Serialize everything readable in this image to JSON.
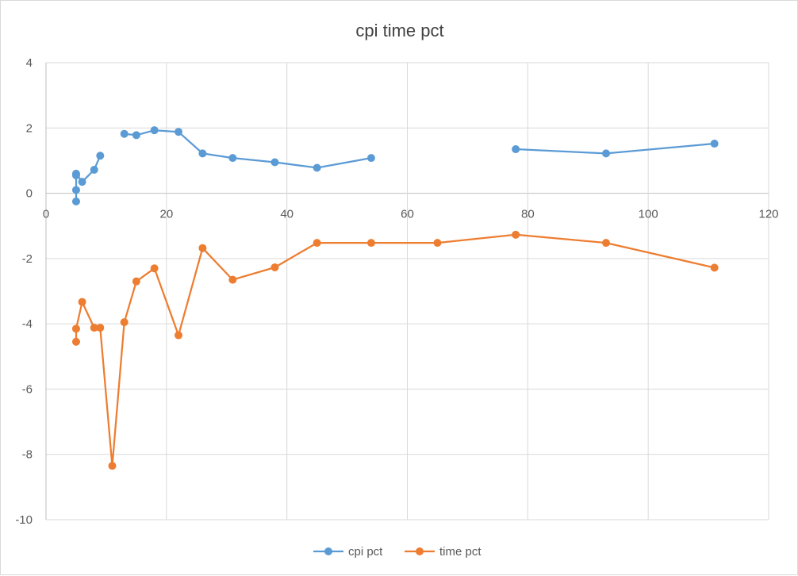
{
  "chart_data": {
    "type": "scatter",
    "title": "cpi time pct",
    "xlabel": "",
    "ylabel": "",
    "xlim": [
      0,
      120
    ],
    "ylim": [
      -10,
      4
    ],
    "x_ticks": [
      0,
      20,
      40,
      60,
      80,
      100,
      120
    ],
    "y_ticks": [
      4,
      2,
      0,
      -2,
      -4,
      -6,
      -8,
      -10
    ],
    "grid": true,
    "legend_position": "bottom",
    "series": [
      {
        "name": "cpi pct",
        "color": "#5b9bd5",
        "segments": [
          [
            [
              5,
              -0.25
            ],
            [
              5,
              0.1
            ],
            [
              5,
              0.55
            ],
            [
              5,
              0.6
            ],
            [
              6,
              0.35
            ],
            [
              8,
              0.72
            ],
            [
              9,
              1.15
            ]
          ],
          [
            [
              13,
              1.82
            ],
            [
              15,
              1.78
            ],
            [
              18,
              1.93
            ],
            [
              22,
              1.88
            ],
            [
              26,
              1.22
            ],
            [
              31,
              1.08
            ],
            [
              38,
              0.95
            ],
            [
              45,
              0.78
            ],
            [
              54,
              1.08
            ]
          ],
          [
            [
              78,
              1.35
            ],
            [
              93,
              1.22
            ],
            [
              111,
              1.52
            ]
          ]
        ]
      },
      {
        "name": "time pct",
        "color": "#ed7d31",
        "segments": [
          [
            [
              5,
              -4.55
            ],
            [
              5,
              -4.15
            ],
            [
              6,
              -3.33
            ],
            [
              8,
              -4.12
            ],
            [
              9,
              -4.12
            ],
            [
              11,
              -8.35
            ],
            [
              13,
              -3.95
            ],
            [
              15,
              -2.7
            ],
            [
              18,
              -2.3
            ],
            [
              22,
              -4.35
            ],
            [
              26,
              -1.68
            ],
            [
              31,
              -2.65
            ],
            [
              38,
              -2.27
            ],
            [
              45,
              -1.52
            ],
            [
              54,
              -1.52
            ],
            [
              65,
              -1.52
            ],
            [
              78,
              -1.27
            ],
            [
              93,
              -1.52
            ],
            [
              111,
              -2.28
            ]
          ]
        ]
      }
    ]
  }
}
